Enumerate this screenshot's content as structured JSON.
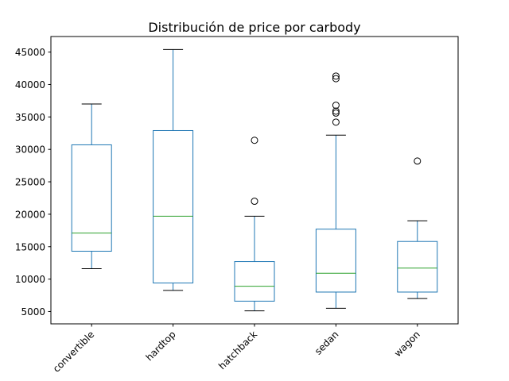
{
  "chart_data": {
    "type": "boxplot",
    "title": "Distribución de price por carbody",
    "xlabel": "",
    "ylabel": "",
    "categories": [
      "convertible",
      "hardtop",
      "hatchback",
      "sedan",
      "wagon"
    ],
    "ylim": [
      3100,
      47400
    ],
    "yticks": [
      5000,
      10000,
      15000,
      20000,
      25000,
      30000,
      35000,
      40000,
      45000
    ],
    "grid": false,
    "colors": {
      "box": "#1f77b4",
      "median": "#2ca02c",
      "whisker": "#000000",
      "flier": "#000000"
    },
    "boxes": [
      {
        "category": "convertible",
        "whisker_low": 11600,
        "q1": 14300,
        "median": 17100,
        "q3": 30700,
        "whisker_high": 37000,
        "fliers": []
      },
      {
        "category": "hardtop",
        "whisker_low": 8250,
        "q1": 9400,
        "median": 19700,
        "q3": 32900,
        "whisker_high": 45400,
        "fliers": []
      },
      {
        "category": "hatchback",
        "whisker_low": 5100,
        "q1": 6600,
        "median": 8900,
        "q3": 12700,
        "whisker_high": 19700,
        "fliers": [
          22000,
          31400
        ]
      },
      {
        "category": "sedan",
        "whisker_low": 5500,
        "q1": 8000,
        "median": 10900,
        "q3": 17700,
        "whisker_high": 32200,
        "fliers": [
          34200,
          35600,
          35900,
          36800,
          40900,
          41300
        ]
      },
      {
        "category": "wagon",
        "whisker_low": 7000,
        "q1": 8000,
        "median": 11700,
        "q3": 15800,
        "whisker_high": 19000,
        "fliers": [
          28200
        ]
      }
    ]
  }
}
